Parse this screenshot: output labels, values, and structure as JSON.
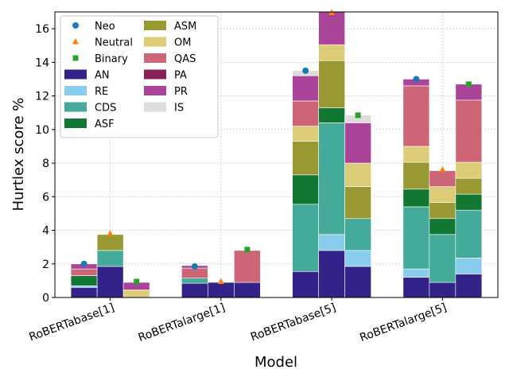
{
  "chart_data": {
    "type": "bar",
    "stacked": true,
    "grouped_subbars": 3,
    "xlabel": "Model",
    "ylabel": "Hurtlex score %",
    "ylim": [
      0,
      17
    ],
    "yticks": [
      0,
      2,
      4,
      6,
      8,
      10,
      12,
      14,
      16
    ],
    "grid": true,
    "legend_position": "top-left",
    "legend_columns": 2,
    "categories": [
      "RoBERTabase[1]",
      "RoBERTalarge[1]",
      "RoBERTabase[5]",
      "RoBERTalarge[5]"
    ],
    "subbars": [
      "Neo",
      "Neutral",
      "Binary"
    ],
    "components": [
      {
        "name": "AN",
        "color": "#332288"
      },
      {
        "name": "RE",
        "color": "#88ccee"
      },
      {
        "name": "CDS",
        "color": "#44aa99"
      },
      {
        "name": "ASF",
        "color": "#117733"
      },
      {
        "name": "ASM",
        "color": "#999933"
      },
      {
        "name": "OM",
        "color": "#ddcc77"
      },
      {
        "name": "QAS",
        "color": "#cc6677"
      },
      {
        "name": "PA",
        "color": "#882255"
      },
      {
        "name": "PR",
        "color": "#aa4499"
      },
      {
        "name": "IS",
        "color": "#dddddd"
      }
    ],
    "markers": [
      {
        "name": "Neo",
        "symbol": "circle",
        "color": "#1f77b4"
      },
      {
        "name": "Neutral",
        "symbol": "triangle",
        "color": "#ff7f0e"
      },
      {
        "name": "Binary",
        "symbol": "square",
        "color": "#2ca02c"
      }
    ],
    "stacks": [
      [
        [
          0.6,
          0.1,
          0.0,
          0.6,
          0.0,
          0.0,
          0.4,
          0.0,
          0.3,
          0.0
        ],
        [
          1.85,
          0.0,
          0.95,
          0.0,
          0.95,
          0.0,
          0.0,
          0.0,
          0.0,
          0.0
        ],
        [
          0.0,
          0.0,
          0.0,
          0.0,
          0.0,
          0.45,
          0.0,
          0.0,
          0.45,
          0.0
        ]
      ],
      [
        [
          0.85,
          0.0,
          0.3,
          0.0,
          0.0,
          0.0,
          0.6,
          0.0,
          0.15,
          0.0
        ],
        [
          0.9,
          0.0,
          0.0,
          0.0,
          0.0,
          0.0,
          0.0,
          0.0,
          0.0,
          0.0
        ],
        [
          0.9,
          0.0,
          0.0,
          0.0,
          0.0,
          0.0,
          1.9,
          0.0,
          0.0,
          0.0
        ]
      ],
      [
        [
          1.55,
          0.0,
          4.0,
          1.75,
          2.0,
          0.9,
          1.5,
          0.0,
          1.5,
          0.3
        ],
        [
          2.8,
          0.95,
          6.65,
          0.9,
          2.8,
          0.95,
          0.0,
          0.0,
          1.95,
          0.0
        ],
        [
          1.85,
          0.95,
          1.9,
          0.0,
          1.9,
          1.4,
          0.0,
          0.0,
          2.4,
          0.45
        ]
      ],
      [
        [
          1.2,
          0.5,
          3.7,
          1.05,
          1.6,
          0.95,
          3.6,
          0.0,
          0.4,
          0.0
        ],
        [
          0.9,
          0.0,
          2.85,
          0.95,
          0.95,
          0.95,
          0.95,
          0.0,
          0.0,
          0.0
        ],
        [
          1.4,
          0.95,
          2.85,
          0.95,
          0.95,
          0.95,
          3.7,
          0.0,
          0.95,
          0.0
        ]
      ]
    ],
    "marker_values": [
      [
        2.0,
        3.8,
        0.95
      ],
      [
        1.85,
        0.95,
        2.85
      ],
      [
        13.5,
        16.95,
        10.85
      ],
      [
        13.0,
        7.6,
        12.7
      ]
    ]
  }
}
